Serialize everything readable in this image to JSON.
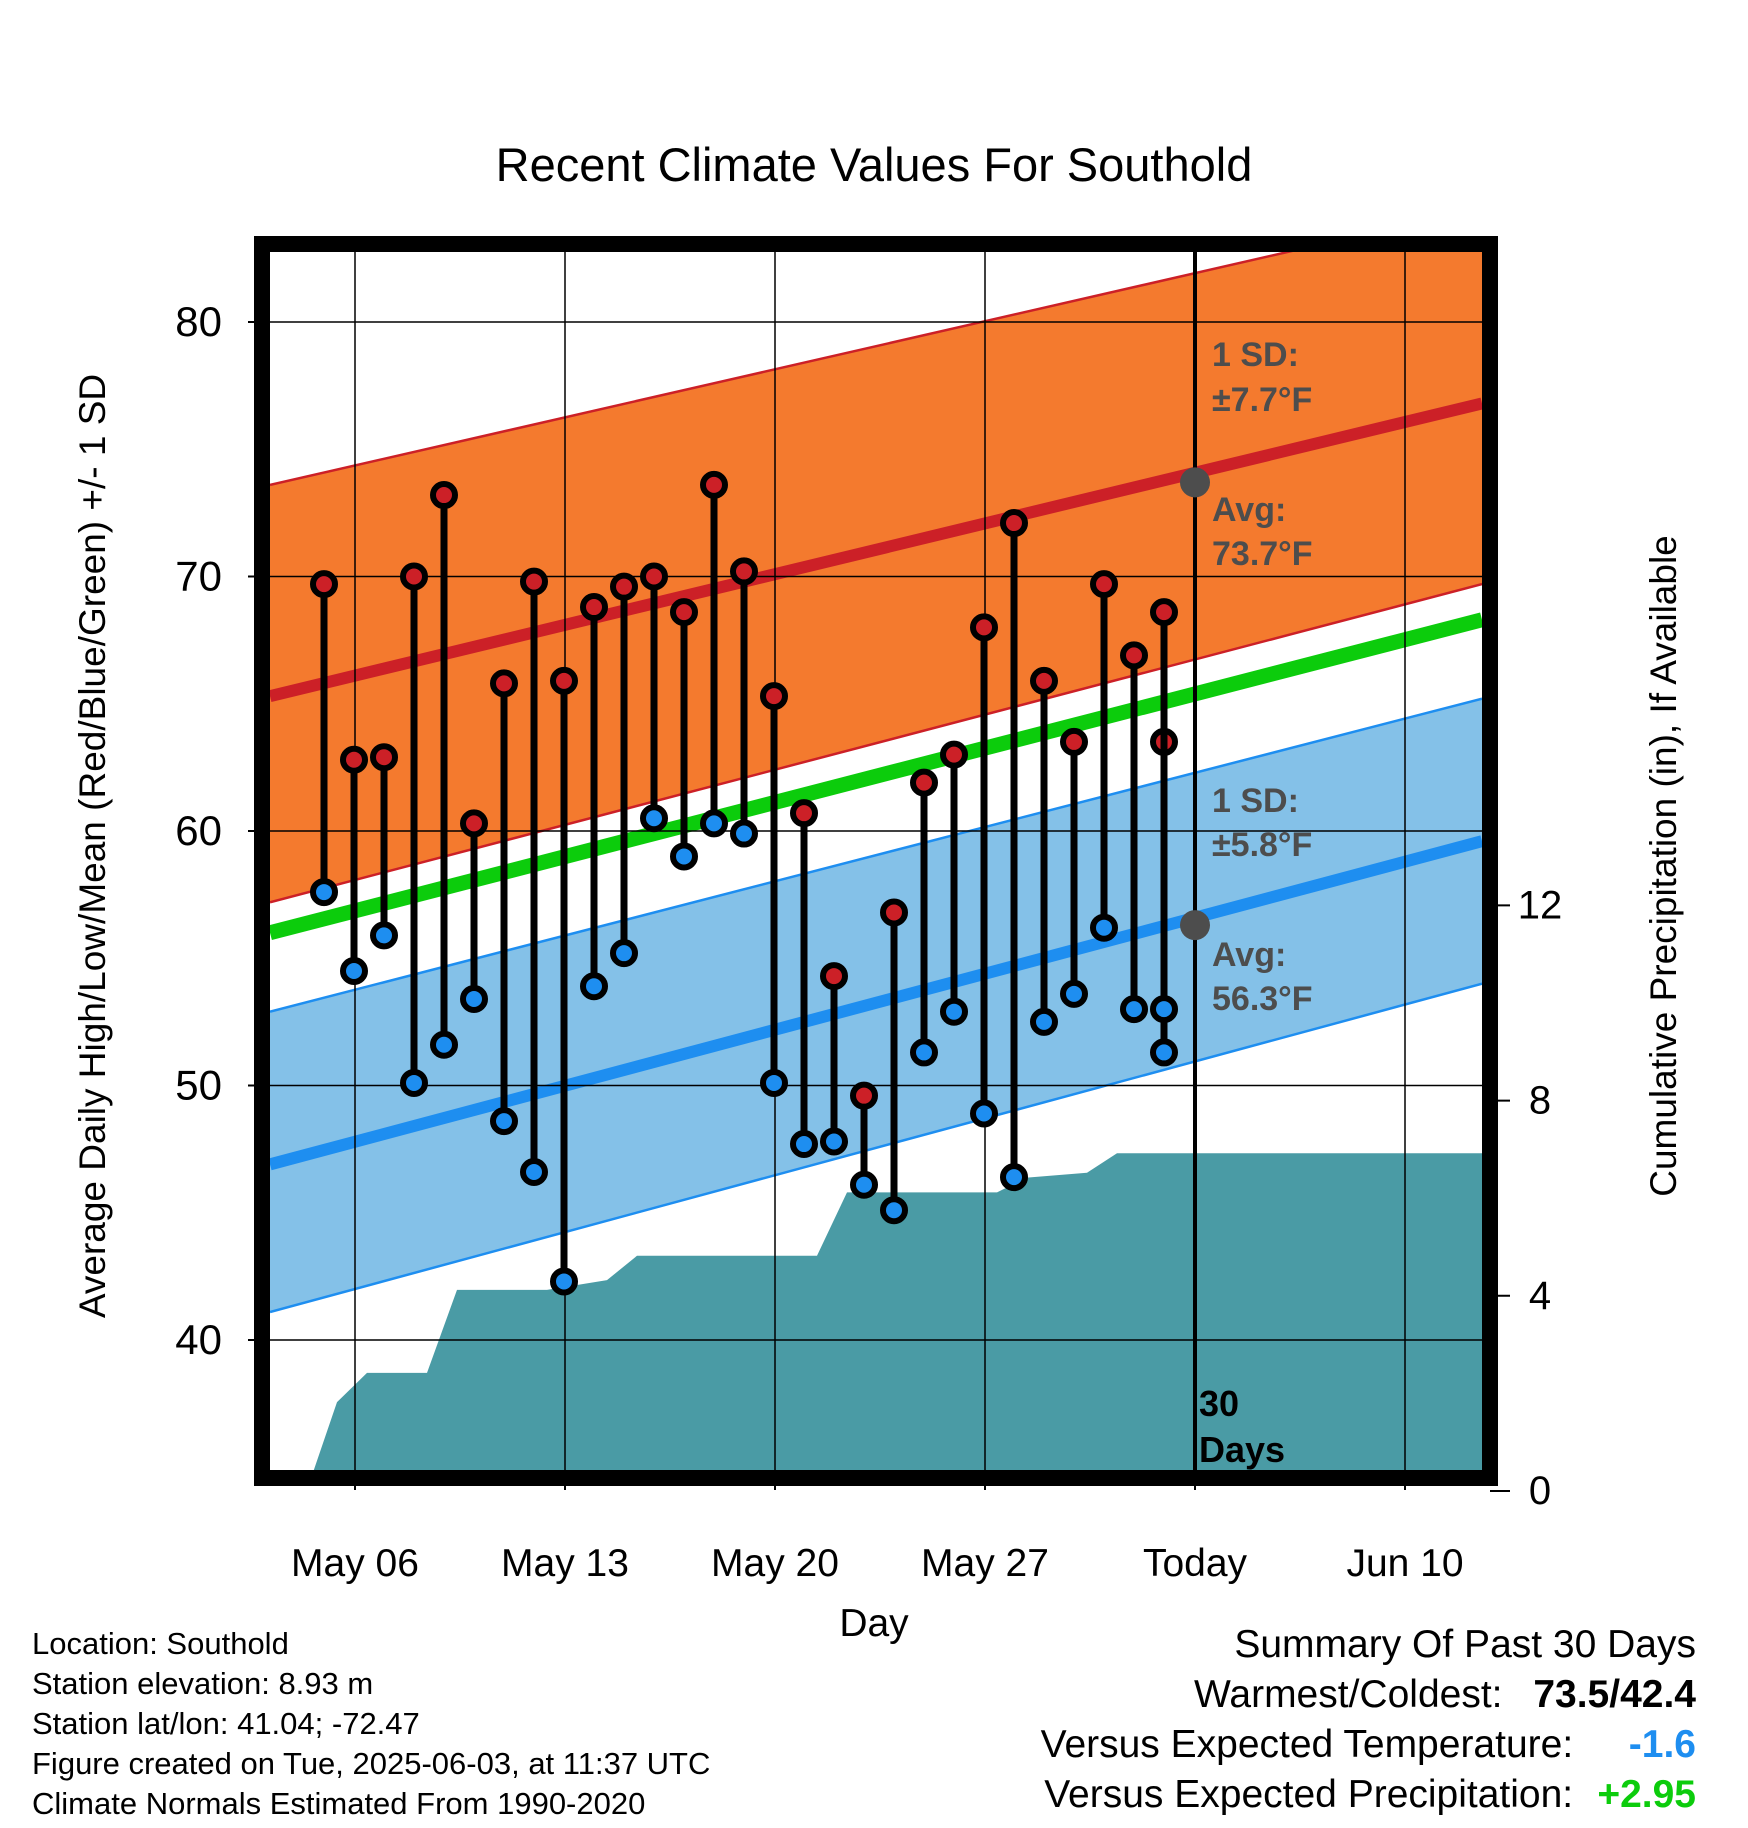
{
  "chart_data": {
    "type": "line",
    "title": "Recent Climate Values For Southold",
    "xlabel": "Day",
    "ylabel_left": "Average Daily High/Low/Mean (Red/Blue/Green) +/- 1 SD",
    "ylabel_right": "Cumulative Precipitation (in), If Available",
    "ylim_left": [
      34.8,
      83
    ],
    "ylim_right": [
      0,
      25
    ],
    "xlim_days": [
      1.5,
      15.5
    ],
    "x_ticks": [
      {
        "day": 6,
        "label": "May 06"
      },
      {
        "day": 13,
        "label": "May 13"
      },
      {
        "day": 20,
        "label": "May 20"
      },
      {
        "day": 27,
        "label": "May 27"
      },
      {
        "day": 34,
        "label": "Today"
      },
      {
        "day": 41,
        "label": "Jun 10"
      }
    ],
    "y_ticks_left": [
      40,
      50,
      60,
      70,
      80
    ],
    "y_ticks_right": [
      0,
      4,
      8,
      12
    ],
    "today_day": 34,
    "today_marker_label": "30 Days",
    "normals": {
      "high_avg": {
        "start": 65.3,
        "end": 76.8
      },
      "high_sd_upper": {
        "start": 73.6,
        "end": 84.5
      },
      "high_sd_lower": {
        "start": 57.2,
        "end": 69.7
      },
      "low_avg": {
        "start": 46.9,
        "end": 59.6
      },
      "low_sd_upper": {
        "start": 52.9,
        "end": 65.2
      },
      "low_sd_lower": {
        "start": 41.1,
        "end": 54.0
      },
      "mean_avg": {
        "start": 56.0,
        "end": 68.3
      }
    },
    "annotations": {
      "high_sd_label": "1 SD:",
      "high_sd_value": "±7.7°F",
      "high_avg_label": "Avg:",
      "high_avg_value": "73.7°F",
      "high_avg_today": 73.7,
      "low_sd_label": "1 SD:",
      "low_sd_value": "±5.8°F",
      "low_avg_label": "Avg:",
      "low_avg_value": "56.3°F",
      "low_avg_today": 56.3
    },
    "daily": {
      "days": [
        5,
        6,
        7,
        8,
        9,
        10,
        11,
        12,
        13,
        14,
        15,
        16,
        17,
        18,
        19,
        20,
        21,
        22,
        23,
        24,
        25,
        26,
        27,
        28,
        29,
        30,
        31,
        32,
        33
      ],
      "highs": [
        69.7,
        62.8,
        62.9,
        70.0,
        73.2,
        60.3,
        65.8,
        69.8,
        65.9,
        68.8,
        69.6,
        70.0,
        68.6,
        73.6,
        70.2,
        65.3,
        60.7,
        54.3,
        49.6,
        56.8,
        61.9,
        63.0,
        68.0,
        72.1,
        65.9,
        63.5,
        69.7,
        66.9,
        63.5
      ],
      "lows": [
        57.6,
        54.5,
        55.9,
        50.1,
        51.6,
        53.4,
        48.6,
        46.6,
        42.3,
        53.9,
        55.2,
        60.5,
        59.0,
        60.3,
        59.9,
        50.1,
        47.7,
        47.8,
        46.1,
        45.1,
        51.3,
        52.9,
        48.9,
        46.4,
        52.5,
        53.6,
        56.2,
        53.0,
        51.3
      ],
      "more_highs": [
        68.6
      ],
      "more_lows": [
        53.0
      ]
    },
    "precip_cumulative": {
      "days": [
        4.7,
        5.7,
        6.7,
        8.7,
        9.7,
        12.7,
        13.7,
        14.7,
        15.7,
        21.7,
        22.7,
        27.7,
        28.7,
        30.7,
        31.7,
        32.7
      ],
      "values": [
        0,
        1.8,
        2.4,
        2.4,
        4.1,
        4.1,
        4.2,
        4.3,
        4.8,
        4.8,
        6.1,
        6.1,
        6.4,
        6.5,
        6.9,
        6.9
      ]
    },
    "precip_end": {
      "day": 44,
      "value": 6.9
    },
    "colors": {
      "high": "#cc2027",
      "high_band": "#f47a2e",
      "low": "#1e8ef0",
      "low_band": "#84c1e8",
      "mean": "#0ccc0c",
      "precip": "#4a9ba5",
      "annotation": "#4d4d4d"
    }
  },
  "info": {
    "location": "Location: Southold",
    "elevation": "Station elevation: 8.93 m",
    "latlon": "Station lat/lon: 41.04; -72.47",
    "created": "Figure created on Tue, 2025-06-03, at 11:37 UTC",
    "normals": "Climate Normals Estimated From 1990-2020"
  },
  "summary": {
    "title": "Summary Of Past 30 Days",
    "warmest_label": "Warmest/Coldest:",
    "warmest_value": "73.5",
    "coldest_value": "42.4",
    "temp_label": "Versus Expected Temperature:",
    "temp_value": "-1.6",
    "precip_label": "Versus Expected Precipitation:",
    "precip_value": "+2.95"
  }
}
